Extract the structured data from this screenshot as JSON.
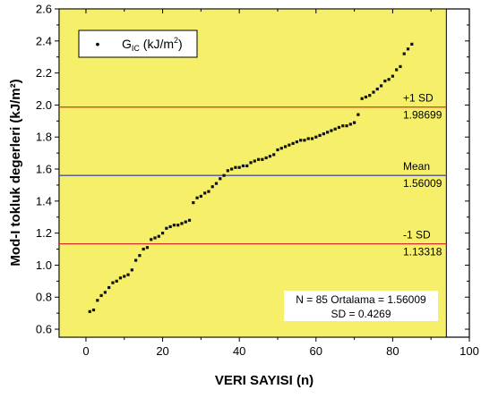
{
  "chart_data": {
    "type": "scatter",
    "xlabel": "VERI SAYISI (n)",
    "ylabel": "Mod-I tokluk degerleri (kJ/m²)",
    "xlim": [
      -7,
      100
    ],
    "ylim": [
      0.55,
      2.6
    ],
    "highlight_xlim": [
      -7,
      94
    ],
    "xticks": [
      "0",
      "20",
      "40",
      "60",
      "80",
      "100"
    ],
    "xtick_values": [
      0,
      20,
      40,
      60,
      80,
      100
    ],
    "yticks": [
      "0.6",
      "0.8",
      "1.0",
      "1.2",
      "1.4",
      "1.6",
      "1.8",
      "2.0",
      "2.2",
      "2.4",
      "2.6"
    ],
    "ytick_values": [
      0.6,
      0.8,
      1.0,
      1.2,
      1.4,
      1.6,
      1.8,
      2.0,
      2.2,
      2.4,
      2.6
    ],
    "legend": {
      "symbol": "•",
      "label_main": "G",
      "label_sub": "IC",
      "label_rest": " (kJ/m",
      "label_sup": "2",
      "label_end": ")",
      "position": "top-left"
    },
    "colors": {
      "plot_bg": "#f5ef6a",
      "outer_bg": "#ffffff",
      "points": "#111111",
      "sd_line": "#d9302a",
      "mean_line": "#4a52a3"
    },
    "reference_lines": [
      {
        "name": "+1 SD",
        "value": 1.98699,
        "label": "+1 SD",
        "value_text": "1.98699",
        "kind": "sd"
      },
      {
        "name": "Mean",
        "value": 1.56009,
        "label": "Mean",
        "value_text": "1.56009",
        "kind": "mean"
      },
      {
        "name": "-1 SD",
        "value": 1.13318,
        "label": "-1 SD",
        "value_text": "1.13318",
        "kind": "sd"
      }
    ],
    "annotation": {
      "line1": "N = 85 Ortalama = 1.56009",
      "line2": "SD = 0.4269"
    },
    "series": [
      {
        "x": [
          1,
          2,
          3,
          4,
          5,
          6,
          7,
          8,
          9,
          10,
          11,
          12,
          13,
          14,
          15,
          16,
          17,
          18,
          19,
          20,
          21,
          22,
          23,
          24,
          25,
          26,
          27,
          28,
          29,
          30,
          31,
          32,
          33,
          34,
          35,
          36,
          37,
          38,
          39,
          40,
          41,
          42,
          43,
          44,
          45,
          46,
          47,
          48,
          49,
          50,
          51,
          52,
          53,
          54,
          55,
          56,
          57,
          58,
          59,
          60,
          61,
          62,
          63,
          64,
          65,
          66,
          67,
          68,
          69,
          70,
          71,
          72,
          73,
          74,
          75,
          76,
          77,
          78,
          79,
          80,
          81,
          82,
          83,
          84,
          85
        ],
        "y": [
          0.71,
          0.72,
          0.78,
          0.81,
          0.83,
          0.86,
          0.89,
          0.9,
          0.92,
          0.93,
          0.94,
          0.97,
          1.03,
          1.06,
          1.1,
          1.11,
          1.16,
          1.17,
          1.18,
          1.2,
          1.23,
          1.24,
          1.25,
          1.25,
          1.26,
          1.27,
          1.28,
          1.39,
          1.42,
          1.43,
          1.45,
          1.46,
          1.49,
          1.51,
          1.54,
          1.56,
          1.59,
          1.6,
          1.61,
          1.61,
          1.62,
          1.62,
          1.64,
          1.65,
          1.66,
          1.66,
          1.67,
          1.68,
          1.69,
          1.72,
          1.73,
          1.74,
          1.75,
          1.76,
          1.77,
          1.78,
          1.78,
          1.79,
          1.79,
          1.8,
          1.81,
          1.82,
          1.83,
          1.84,
          1.85,
          1.86,
          1.87,
          1.87,
          1.88,
          1.89,
          1.94,
          2.04,
          2.05,
          2.06,
          2.08,
          2.1,
          2.12,
          2.15,
          2.16,
          2.18,
          2.22,
          2.24,
          2.32,
          2.35,
          2.38
        ]
      }
    ]
  }
}
